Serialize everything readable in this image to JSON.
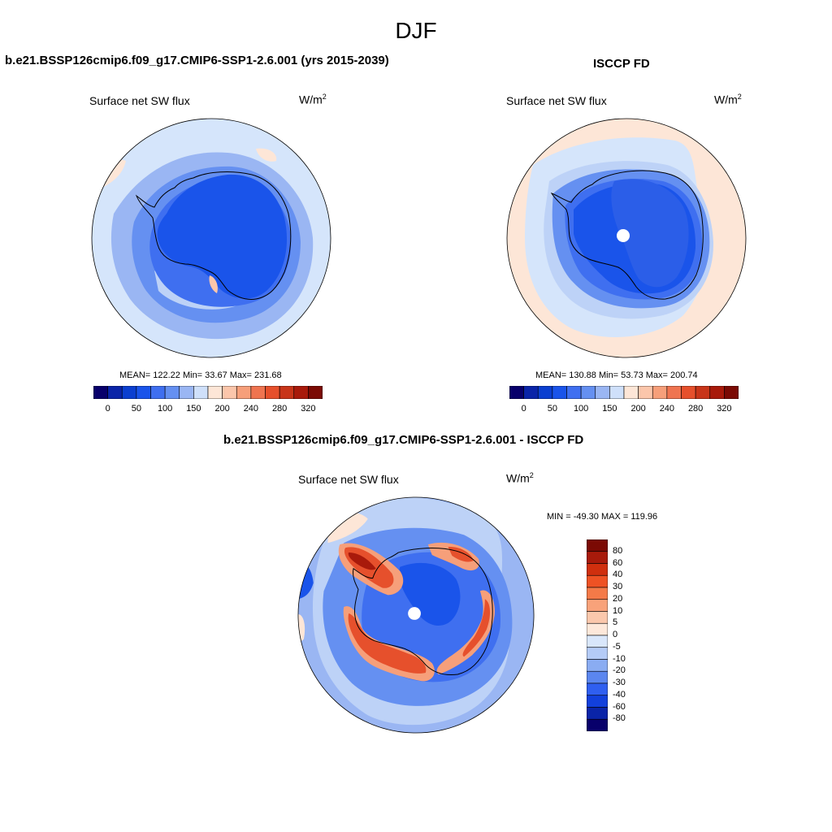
{
  "figure": {
    "title": "DJF"
  },
  "panels": [
    {
      "title": "b.e21.BSSP126cmip6.f09_g17.CMIP6-SSP1-2.6.001 (yrs 2015-2039)",
      "variable": "Surface net SW flux",
      "units_base": "W/m",
      "units_exp": "2",
      "stats": "MEAN= 122.22  Min=  33.67  Max= 231.68"
    },
    {
      "title": "ISCCP FD",
      "variable": "Surface net SW flux",
      "units_base": "W/m",
      "units_exp": "2",
      "stats": "MEAN= 130.88  Min=  53.73  Max= 200.74"
    },
    {
      "title": "b.e21.BSSP126cmip6.f09_g17.CMIP6-SSP1-2.6.001 - ISCCP FD",
      "variable": "Surface net SW flux",
      "units_base": "W/m",
      "units_exp": "2",
      "stats": "MIN = -49.30 MAX = 119.96"
    }
  ],
  "colorbars": {
    "flux": {
      "colors": [
        "#08006b",
        "#0a24a8",
        "#0b3fd0",
        "#1a54ea",
        "#3f6ff0",
        "#6590f1",
        "#9ab6f3",
        "#cfe0fa",
        "#fde6d7",
        "#fbc6ab",
        "#f69f7a",
        "#ef7450",
        "#e6502c",
        "#c83519",
        "#a81a0b",
        "#7b0a04"
      ],
      "tick_labels": [
        "0",
        "50",
        "100",
        "150",
        "200",
        "240",
        "280",
        "320"
      ]
    },
    "diff": {
      "colors": [
        "#7b0a04",
        "#a81a0b",
        "#d02f0e",
        "#ee5224",
        "#f47a48",
        "#f8a27a",
        "#fbc8ac",
        "#fde8da",
        "#d9e7fb",
        "#b4cbf6",
        "#8aacf2",
        "#5b86ef",
        "#2f5ff0",
        "#1240dc",
        "#0a24a8",
        "#08006b"
      ],
      "tick_labels": [
        "80",
        "60",
        "40",
        "30",
        "20",
        "10",
        "5",
        "0",
        "-5",
        "-10",
        "-20",
        "-30",
        "-40",
        "-60",
        "-80"
      ]
    }
  },
  "map_colors": {
    "background": "#d5e5fb",
    "ocean_light": "#bdd2f7",
    "ocean_mid": "#9ab6f3",
    "ice_mid": "#6590f1",
    "ice_dark": "#3f6ff0",
    "ice_darker": "#1a54ea",
    "ice_core": "#2b5ee8",
    "warm_light": "#fde6d7",
    "warm_mid": "#fbc6ab",
    "diff_red": "#e6502c",
    "diff_darkred": "#a81a0b",
    "diff_orange": "#f69f7a",
    "coastline": "#000000"
  }
}
